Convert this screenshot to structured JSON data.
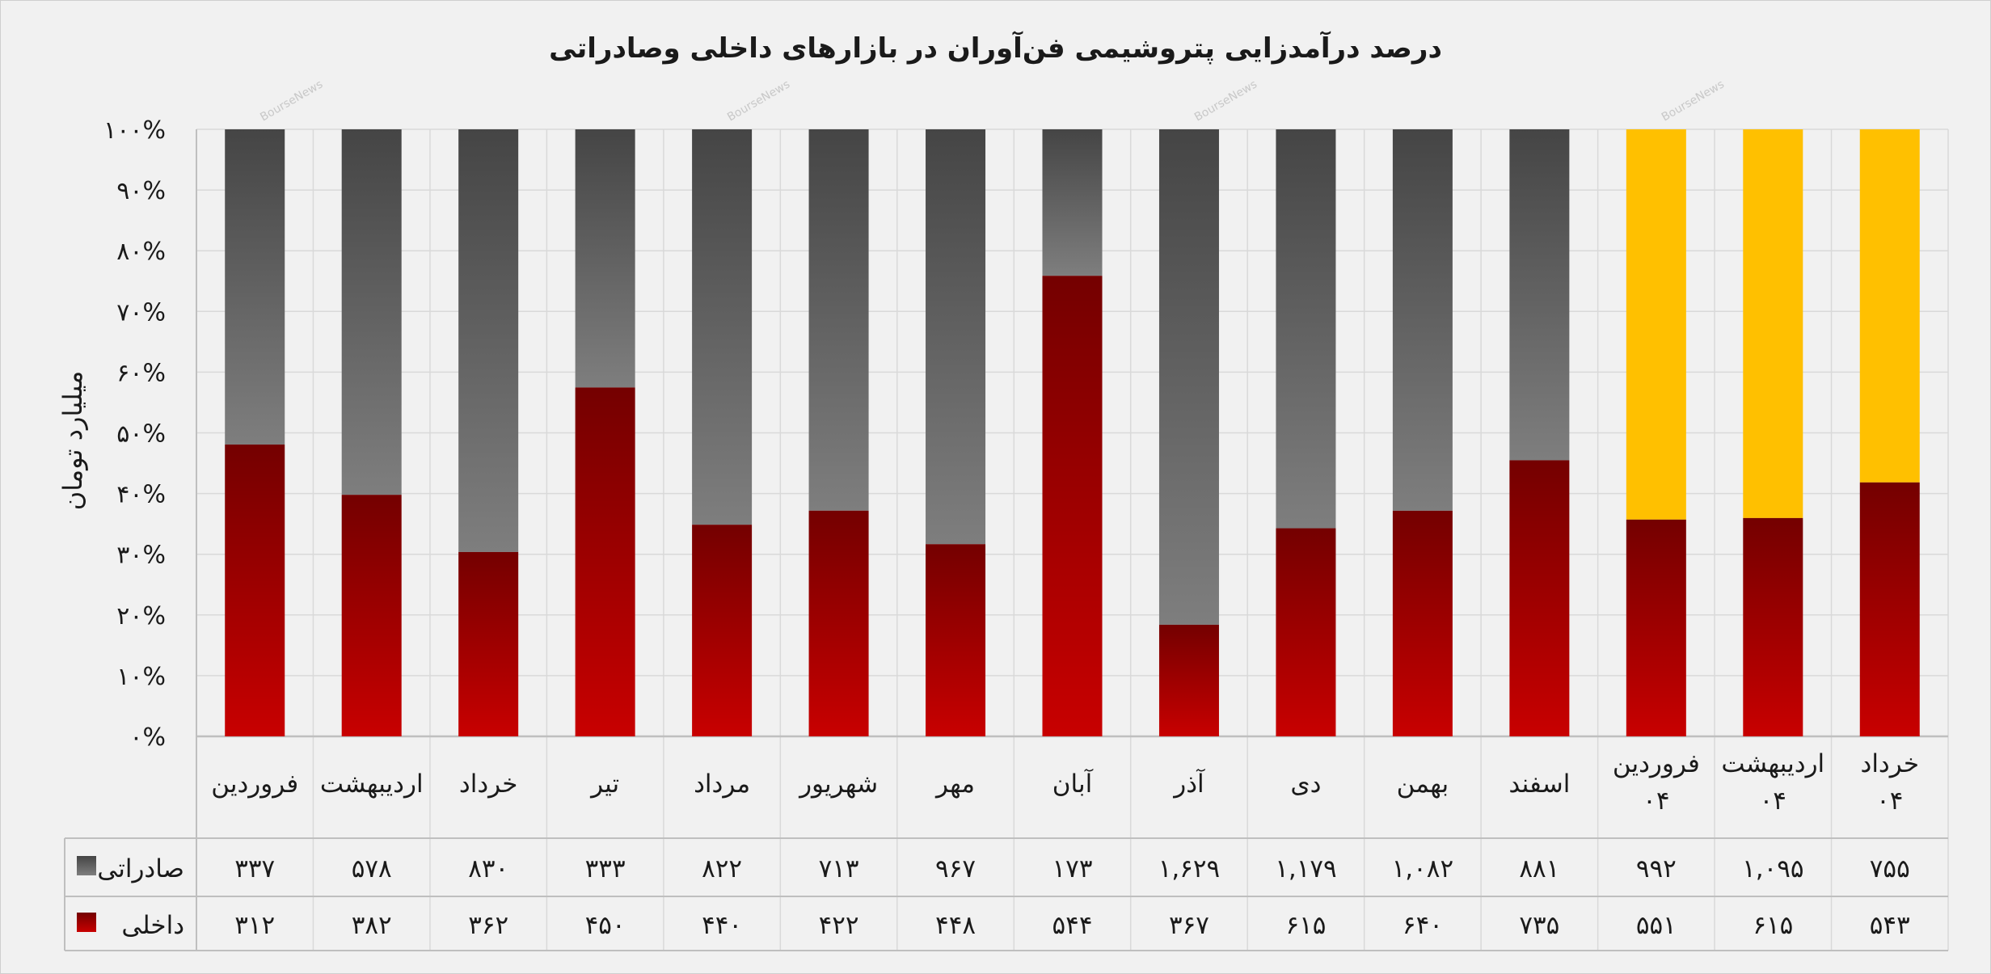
{
  "chart_data": {
    "type": "bar",
    "stacked": "percent",
    "title": "درصد درآمدزایی پتروشیمی فن‌آوران در بازارهای داخلی وصادراتی",
    "ylabel": "میلیارد تومان",
    "ylim": [
      0,
      100
    ],
    "yticks": [
      "۰%",
      "۱۰%",
      "۲۰%",
      "۳۰%",
      "۴۰%",
      "۵۰%",
      "۶۰%",
      "۷۰%",
      "۸۰%",
      "۹۰%",
      "۱۰۰%"
    ],
    "categories": [
      [
        "فروردین"
      ],
      [
        "اردیبهشت"
      ],
      [
        "خرداد"
      ],
      [
        "تیر"
      ],
      [
        "مرداد"
      ],
      [
        "شهریور"
      ],
      [
        "مهر"
      ],
      [
        "آبان"
      ],
      [
        "آذر"
      ],
      [
        "دی"
      ],
      [
        "بهمن"
      ],
      [
        "اسفند"
      ],
      [
        "فروردین",
        "۰۴"
      ],
      [
        "اردیبهشت",
        "۰۴"
      ],
      [
        "خرداد",
        "۰۴"
      ]
    ],
    "series": [
      {
        "name": "صادراتی",
        "values": [
          337,
          578,
          830,
          333,
          822,
          713,
          967,
          173,
          1629,
          1179,
          1082,
          881,
          992,
          1095,
          755
        ],
        "labels": [
          "۳۳۷",
          "۵۷۸",
          "۸۳۰",
          "۳۳۳",
          "۸۲۲",
          "۷۱۳",
          "۹۶۷",
          "۱۷۳",
          "۱,۶۲۹",
          "۱,۱۷۹",
          "۱,۰۸۲",
          "۸۸۱",
          "۹۹۲",
          "۱,۰۹۵",
          "۷۵۵"
        ]
      },
      {
        "name": "داخلی",
        "values": [
          312,
          382,
          362,
          450,
          440,
          422,
          448,
          544,
          367,
          615,
          640,
          735,
          551,
          615,
          543
        ],
        "labels": [
          "۳۱۲",
          "۳۸۲",
          "۳۶۲",
          "۴۵۰",
          "۴۴۰",
          "۴۲۲",
          "۴۴۸",
          "۵۴۴",
          "۳۶۷",
          "۶۱۵",
          "۶۴۰",
          "۷۳۵",
          "۵۵۱",
          "۶۱۵",
          "۵۴۳"
        ]
      }
    ],
    "highlight_last": 3,
    "colors": {
      "export_top": "#454545",
      "export_bottom": "#7e7e7e",
      "domestic_top": "#740000",
      "domestic_bottom": "#c80000",
      "highlight_export": "#ffc000",
      "grid": "#d9d9d9",
      "axis": "#bfbfbf"
    },
    "grid": true,
    "legend": "data-table"
  },
  "watermark": "BourseNews"
}
